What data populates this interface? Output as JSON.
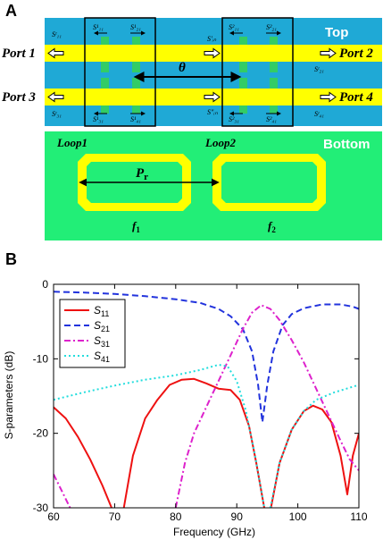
{
  "panel_a": {
    "label": "A",
    "layer_top": "Top",
    "layer_bottom": "Bottom",
    "ports": [
      "Port 1",
      "Port 2",
      "Port 3",
      "Port 4"
    ],
    "theta": "θ",
    "pr": "P",
    "pr_sub": "r",
    "loop1": "Loop1",
    "loop2": "Loop2",
    "f1": "f",
    "f1_sub": "1",
    "f2": "f",
    "f2_sub": "2",
    "sp_labels": {
      "left_top_s11": "S¹₁₁",
      "left_top_s21": "S¹₂₁",
      "right_top_sin": "S′ᵢₙ",
      "right_top_s11": "S²₁₁",
      "right_top_s21": "S²₂₁",
      "left_bot_s31": "S¹₃₁",
      "left_bot_s41": "S¹₄₁",
      "right_bot_sin": "S″ᵢₙ",
      "right_bot_s31": "S²₃₁",
      "right_bot_s41": "S²₄₁",
      "port1_s": "Sᵗ₁₁",
      "port2_s": "Sᵗ₂₁",
      "port3_s": "Sᵗ₃₁",
      "port4_s": "Sᵗ₄₁"
    },
    "colors": {
      "substrate": "#1fa9d6",
      "line": "#ffff00",
      "ground": "#22ee77",
      "patch": "#33cc66"
    }
  },
  "panel_b": {
    "label": "B",
    "xlabel": "Frequency (GHz)",
    "ylabel": "S-parameters (dB)"
  },
  "chart_data": {
    "type": "line",
    "xlabel": "Frequency (GHz)",
    "ylabel": "S-parameters (dB)",
    "xlim": [
      60,
      110
    ],
    "ylim": [
      -30,
      0
    ],
    "xticks": [
      60,
      70,
      80,
      90,
      100,
      110
    ],
    "yticks": [
      0,
      -10,
      -20,
      -30
    ],
    "legend_position": "top-left",
    "series": [
      {
        "name": "S11",
        "color": "#ee1111",
        "dash": "solid",
        "segments": [
          [
            [
              60,
              -16.5
            ],
            [
              62,
              -18
            ],
            [
              64,
              -20.5
            ],
            [
              66,
              -23.5
            ],
            [
              68,
              -27
            ],
            [
              69.5,
              -30
            ]
          ],
          [
            [
              71.5,
              -30
            ],
            [
              73,
              -23
            ],
            [
              75,
              -18
            ],
            [
              77,
              -15.5
            ],
            [
              79,
              -13.5
            ],
            [
              81,
              -12.8
            ],
            [
              83,
              -12.7
            ],
            [
              85,
              -13.3
            ],
            [
              87,
              -14
            ],
            [
              89,
              -14.2
            ],
            [
              90.5,
              -15.5
            ],
            [
              92,
              -19
            ],
            [
              93.2,
              -24
            ],
            [
              94.5,
              -30
            ]
          ],
          [
            [
              95.6,
              -30
            ],
            [
              97,
              -24
            ],
            [
              99,
              -19.5
            ],
            [
              101,
              -17
            ],
            [
              102.5,
              -16.3
            ],
            [
              104,
              -16.8
            ],
            [
              105.5,
              -18.5
            ],
            [
              107,
              -23
            ],
            [
              108.1,
              -28.2
            ],
            [
              109,
              -23
            ],
            [
              110,
              -20
            ]
          ]
        ]
      },
      {
        "name": "S21",
        "color": "#2233dd",
        "dash": "7,4",
        "segments": [
          [
            [
              60,
              -1.0
            ],
            [
              65,
              -1.1
            ],
            [
              70,
              -1.3
            ],
            [
              75,
              -1.6
            ],
            [
              80,
              -2.0
            ],
            [
              84,
              -2.5
            ],
            [
              87,
              -3.3
            ],
            [
              89,
              -4.3
            ],
            [
              91,
              -6.0
            ],
            [
              92.5,
              -9.0
            ],
            [
              93.5,
              -13.5
            ],
            [
              94.2,
              -18.5
            ],
            [
              95,
              -13.5
            ],
            [
              96,
              -9.0
            ],
            [
              97.5,
              -5.5
            ],
            [
              99,
              -4.0
            ],
            [
              101,
              -3.2
            ],
            [
              104,
              -2.7
            ],
            [
              107,
              -2.7
            ],
            [
              109,
              -3.0
            ],
            [
              110,
              -3.3
            ]
          ]
        ]
      },
      {
        "name": "S31",
        "color": "#dd22cc",
        "dash": "7,3,2,3",
        "segments": [
          [
            [
              60,
              -25.5
            ],
            [
              61.5,
              -28
            ],
            [
              62.7,
              -30
            ]
          ],
          [
            [
              80,
              -30
            ],
            [
              81.5,
              -24
            ],
            [
              83,
              -20
            ],
            [
              85,
              -16.5
            ],
            [
              87,
              -13
            ],
            [
              89,
              -9.5
            ],
            [
              91,
              -6
            ],
            [
              92.5,
              -3.8
            ],
            [
              94,
              -2.8
            ],
            [
              95.5,
              -3.3
            ],
            [
              97,
              -4.8
            ],
            [
              99,
              -7.5
            ],
            [
              101,
              -10.5
            ],
            [
              103,
              -14
            ],
            [
              105,
              -17.5
            ],
            [
              107,
              -21
            ],
            [
              108.5,
              -23.5
            ],
            [
              110,
              -25
            ]
          ]
        ]
      },
      {
        "name": "S41",
        "color": "#22dddd",
        "dash": "2,3",
        "segments": [
          [
            [
              60,
              -15.5
            ],
            [
              65,
              -14.5
            ],
            [
              70,
              -13.6
            ],
            [
              75,
              -12.8
            ],
            [
              80,
              -12.2
            ],
            [
              84,
              -11.5
            ],
            [
              87,
              -10.8
            ],
            [
              88.5,
              -11.0
            ],
            [
              90,
              -13
            ],
            [
              91.5,
              -17
            ],
            [
              93,
              -23
            ],
            [
              94.5,
              -30
            ]
          ],
          [
            [
              95.5,
              -30
            ],
            [
              97,
              -24
            ],
            [
              99,
              -19.5
            ],
            [
              101,
              -17
            ],
            [
              103,
              -15.5
            ],
            [
              106,
              -14.5
            ],
            [
              108,
              -14
            ],
            [
              110,
              -13.5
            ]
          ]
        ]
      }
    ]
  }
}
